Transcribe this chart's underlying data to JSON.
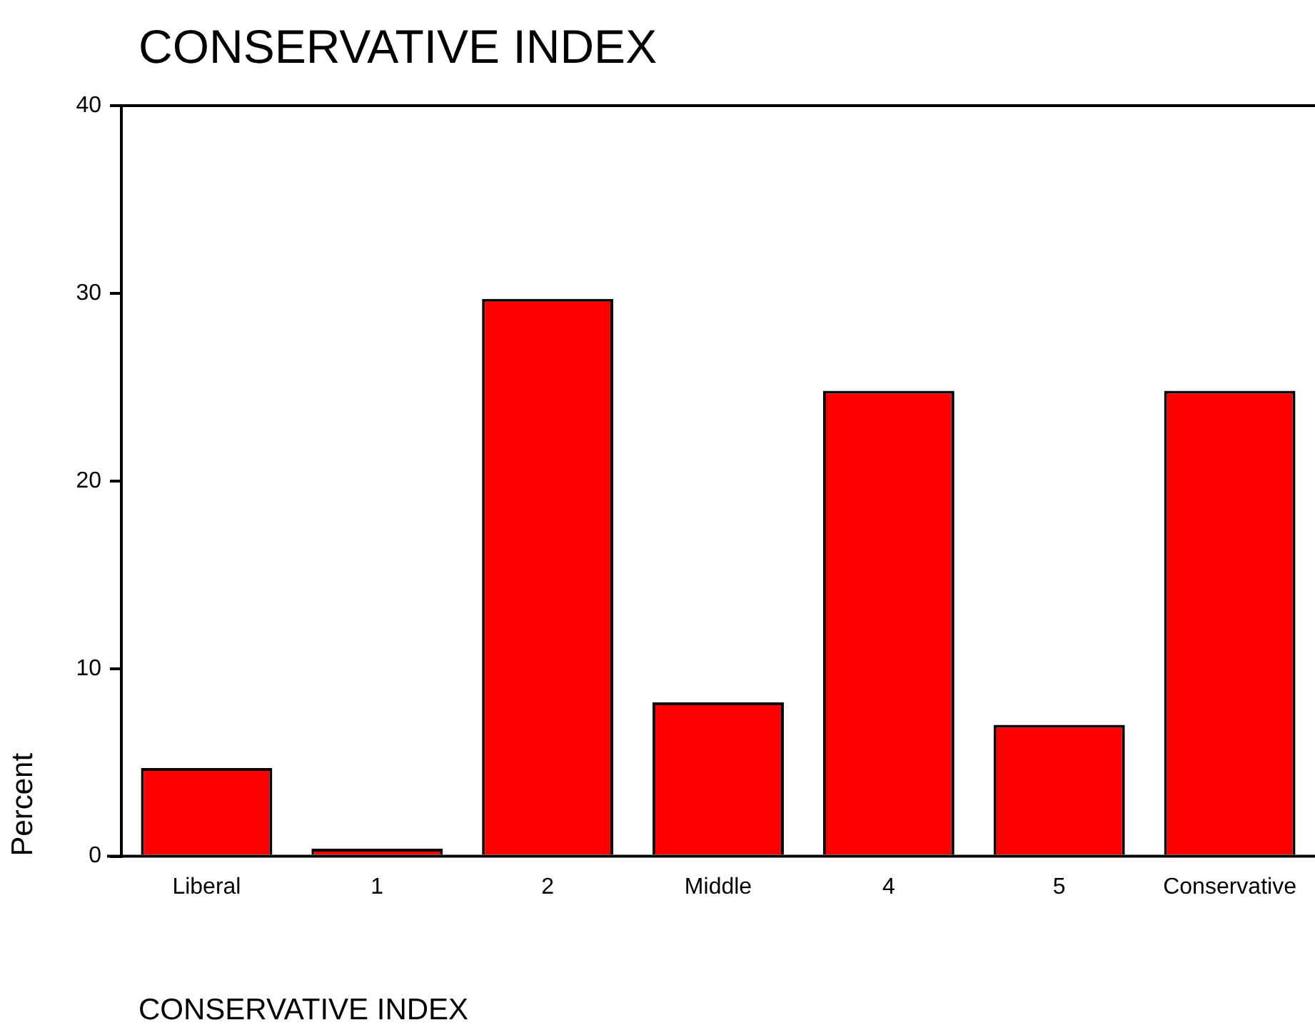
{
  "chart_data": {
    "type": "bar",
    "title": "CONSERVATIVE INDEX",
    "xlabel": "CONSERVATIVE INDEX",
    "ylabel": "Percent",
    "categories": [
      "Liberal",
      "1",
      "2",
      "Middle",
      "4",
      "5",
      "Conservative"
    ],
    "values": [
      4.7,
      0.4,
      29.7,
      8.2,
      24.8,
      7.0,
      24.8
    ],
    "color": "#ff0000",
    "ylim": [
      0,
      40
    ],
    "yticks": [
      0,
      10,
      20,
      30,
      40
    ],
    "grid": false,
    "legend": false
  }
}
